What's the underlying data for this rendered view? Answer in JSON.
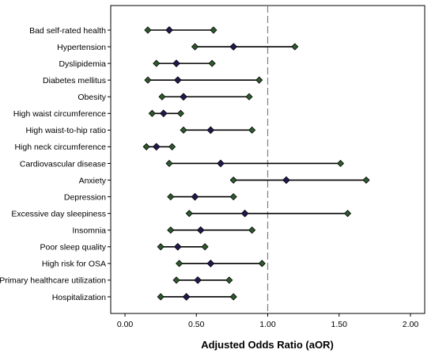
{
  "chart_data": {
    "type": "forest",
    "xlabel": "Adjusted Odds Ratio (aOR)",
    "xlim": [
      -0.1,
      2.1
    ],
    "xticks": [
      "0.00",
      "0.50",
      "1.00",
      "1.50",
      "2.00"
    ],
    "xtick_values": [
      0,
      0.5,
      1.0,
      1.5,
      2.0
    ],
    "reference_line": 1.0,
    "grid": false,
    "colors": {
      "point": "#1f1a4d",
      "whisker": "#2e5a2e",
      "line": "#000000",
      "reference": "#7f7f7f"
    },
    "rows": [
      {
        "label": "Bad self-rated health",
        "lower": 0.16,
        "estimate": 0.31,
        "upper": 0.62
      },
      {
        "label": "Hypertension",
        "lower": 0.49,
        "estimate": 0.76,
        "upper": 1.19
      },
      {
        "label": "Dyslipidemia",
        "lower": 0.22,
        "estimate": 0.36,
        "upper": 0.61
      },
      {
        "label": "Diabetes mellitus",
        "lower": 0.16,
        "estimate": 0.37,
        "upper": 0.94
      },
      {
        "label": "Obesity",
        "lower": 0.26,
        "estimate": 0.41,
        "upper": 0.87
      },
      {
        "label": "High waist circumference",
        "lower": 0.19,
        "estimate": 0.27,
        "upper": 0.39
      },
      {
        "label": "High waist-to-hip ratio",
        "lower": 0.41,
        "estimate": 0.6,
        "upper": 0.89
      },
      {
        "label": "High neck circumference",
        "lower": 0.15,
        "estimate": 0.22,
        "upper": 0.33
      },
      {
        "label": "Cardiovascular disease",
        "lower": 0.31,
        "estimate": 0.67,
        "upper": 1.51
      },
      {
        "label": "Anxiety",
        "lower": 0.76,
        "estimate": 1.13,
        "upper": 1.69
      },
      {
        "label": "Depression",
        "lower": 0.32,
        "estimate": 0.49,
        "upper": 0.76
      },
      {
        "label": "Excessive day sleepiness",
        "lower": 0.45,
        "estimate": 0.84,
        "upper": 1.56
      },
      {
        "label": "Insomnia",
        "lower": 0.32,
        "estimate": 0.53,
        "upper": 0.89
      },
      {
        "label": "Poor sleep quality",
        "lower": 0.25,
        "estimate": 0.37,
        "upper": 0.56
      },
      {
        "label": "High risk for OSA",
        "lower": 0.38,
        "estimate": 0.6,
        "upper": 0.96
      },
      {
        "label": "Primary healthcare utilization",
        "lower": 0.36,
        "estimate": 0.51,
        "upper": 0.73
      },
      {
        "label": "Hospitalization",
        "lower": 0.25,
        "estimate": 0.43,
        "upper": 0.76
      }
    ]
  }
}
